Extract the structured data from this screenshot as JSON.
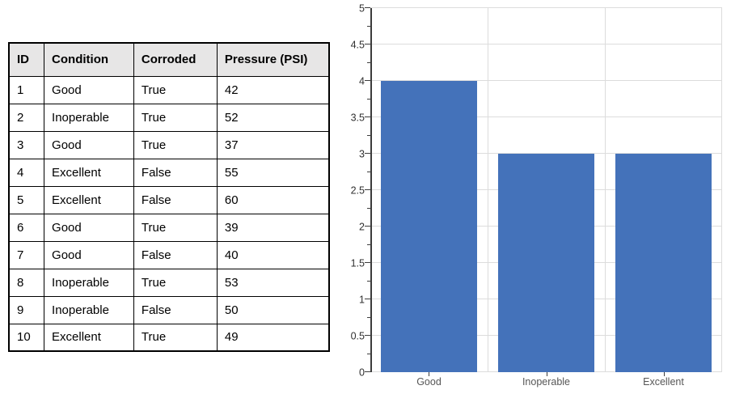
{
  "table": {
    "headers": [
      "ID",
      "Condition",
      "Corroded",
      "Pressure (PSI)"
    ],
    "col_widths_pct": [
      11,
      28,
      26,
      35
    ],
    "rows": [
      [
        "1",
        "Good",
        "True",
        "42"
      ],
      [
        "2",
        "Inoperable",
        "True",
        "52"
      ],
      [
        "3",
        "Good",
        "True",
        "37"
      ],
      [
        "4",
        "Excellent",
        "False",
        "55"
      ],
      [
        "5",
        "Excellent",
        "False",
        "60"
      ],
      [
        "6",
        "Good",
        "True",
        "39"
      ],
      [
        "7",
        "Good",
        "False",
        "40"
      ],
      [
        "8",
        "Inoperable",
        "True",
        "53"
      ],
      [
        "9",
        "Inoperable",
        "False",
        "50"
      ],
      [
        "10",
        "Excellent",
        "True",
        "49"
      ]
    ],
    "header_bg": "#e7e6e6",
    "border_color": "#000000"
  },
  "chart_data": {
    "type": "bar",
    "categories": [
      "Good",
      "Inoperable",
      "Excellent"
    ],
    "values": [
      4,
      3,
      3
    ],
    "title": "",
    "xlabel": "",
    "ylabel": "",
    "ylim": [
      0,
      5
    ],
    "ytick_step": 0.5,
    "minor_tick_step": 0.25,
    "grid": true,
    "legend": false,
    "bar_color": "#4472ba",
    "gridline_color": "#dcdcdc",
    "axis_color": "#3c3c3c",
    "tick_label_color": "#303030",
    "category_label_color": "#565656",
    "bar_width_fraction": 0.815
  }
}
